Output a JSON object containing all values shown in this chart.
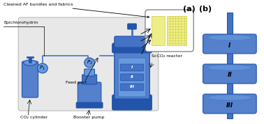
{
  "fig_width": 3.78,
  "fig_height": 1.78,
  "dpi": 100,
  "blue_main": "#4472C4",
  "blue_light": "#6699DD",
  "blue_dark": "#2255AA",
  "blue_mid": "#5580CC",
  "gray_bg": "#D8D8D8",
  "yellow_fabric": "#EEEE88",
  "yellow_grid": "#CCCC44",
  "white": "#FFFFFF",
  "black": "#000000",
  "label_a": "(a)",
  "label_b": "(b)",
  "text_co2": "CO₂ cylinder",
  "text_boost": "Booster pump",
  "text_feed": "Feed port",
  "text_sccO2": "ScCO₂ reactor",
  "text_cleaned": "Cleaned AF bundles and fabrics",
  "text_epich": "Epichlorohydrin",
  "roman_I": "I",
  "roman_II": "II",
  "roman_III": "III"
}
